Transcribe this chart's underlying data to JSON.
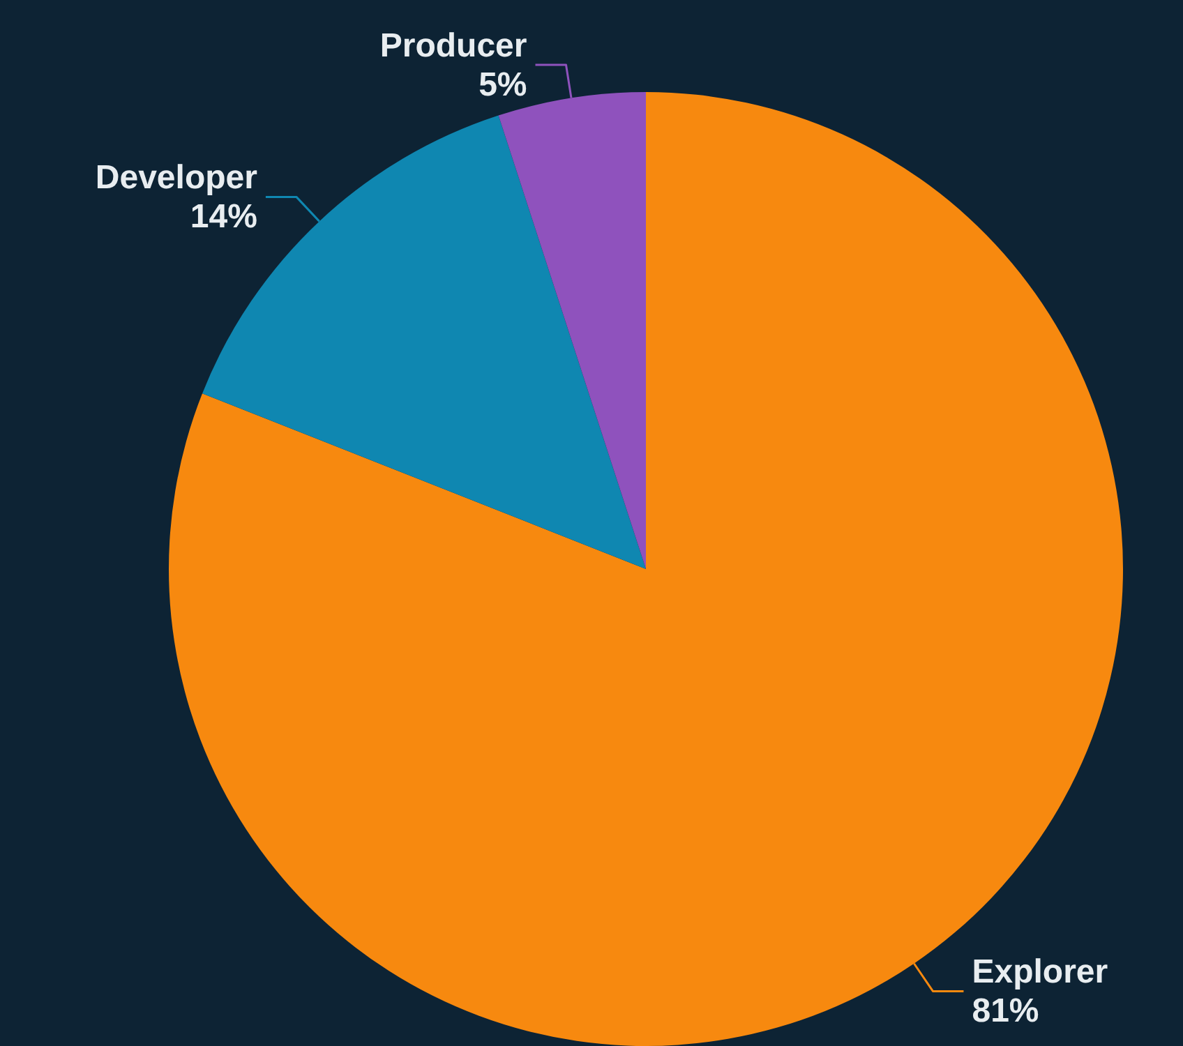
{
  "chart_data": {
    "type": "pie",
    "categories": [
      "Explorer",
      "Developer",
      "Producer"
    ],
    "values": [
      81,
      14,
      5
    ],
    "colors": [
      "#f7890f",
      "#0f87b1",
      "#8f52bd"
    ],
    "value_labels": [
      "81%",
      "14%",
      "5%"
    ]
  }
}
